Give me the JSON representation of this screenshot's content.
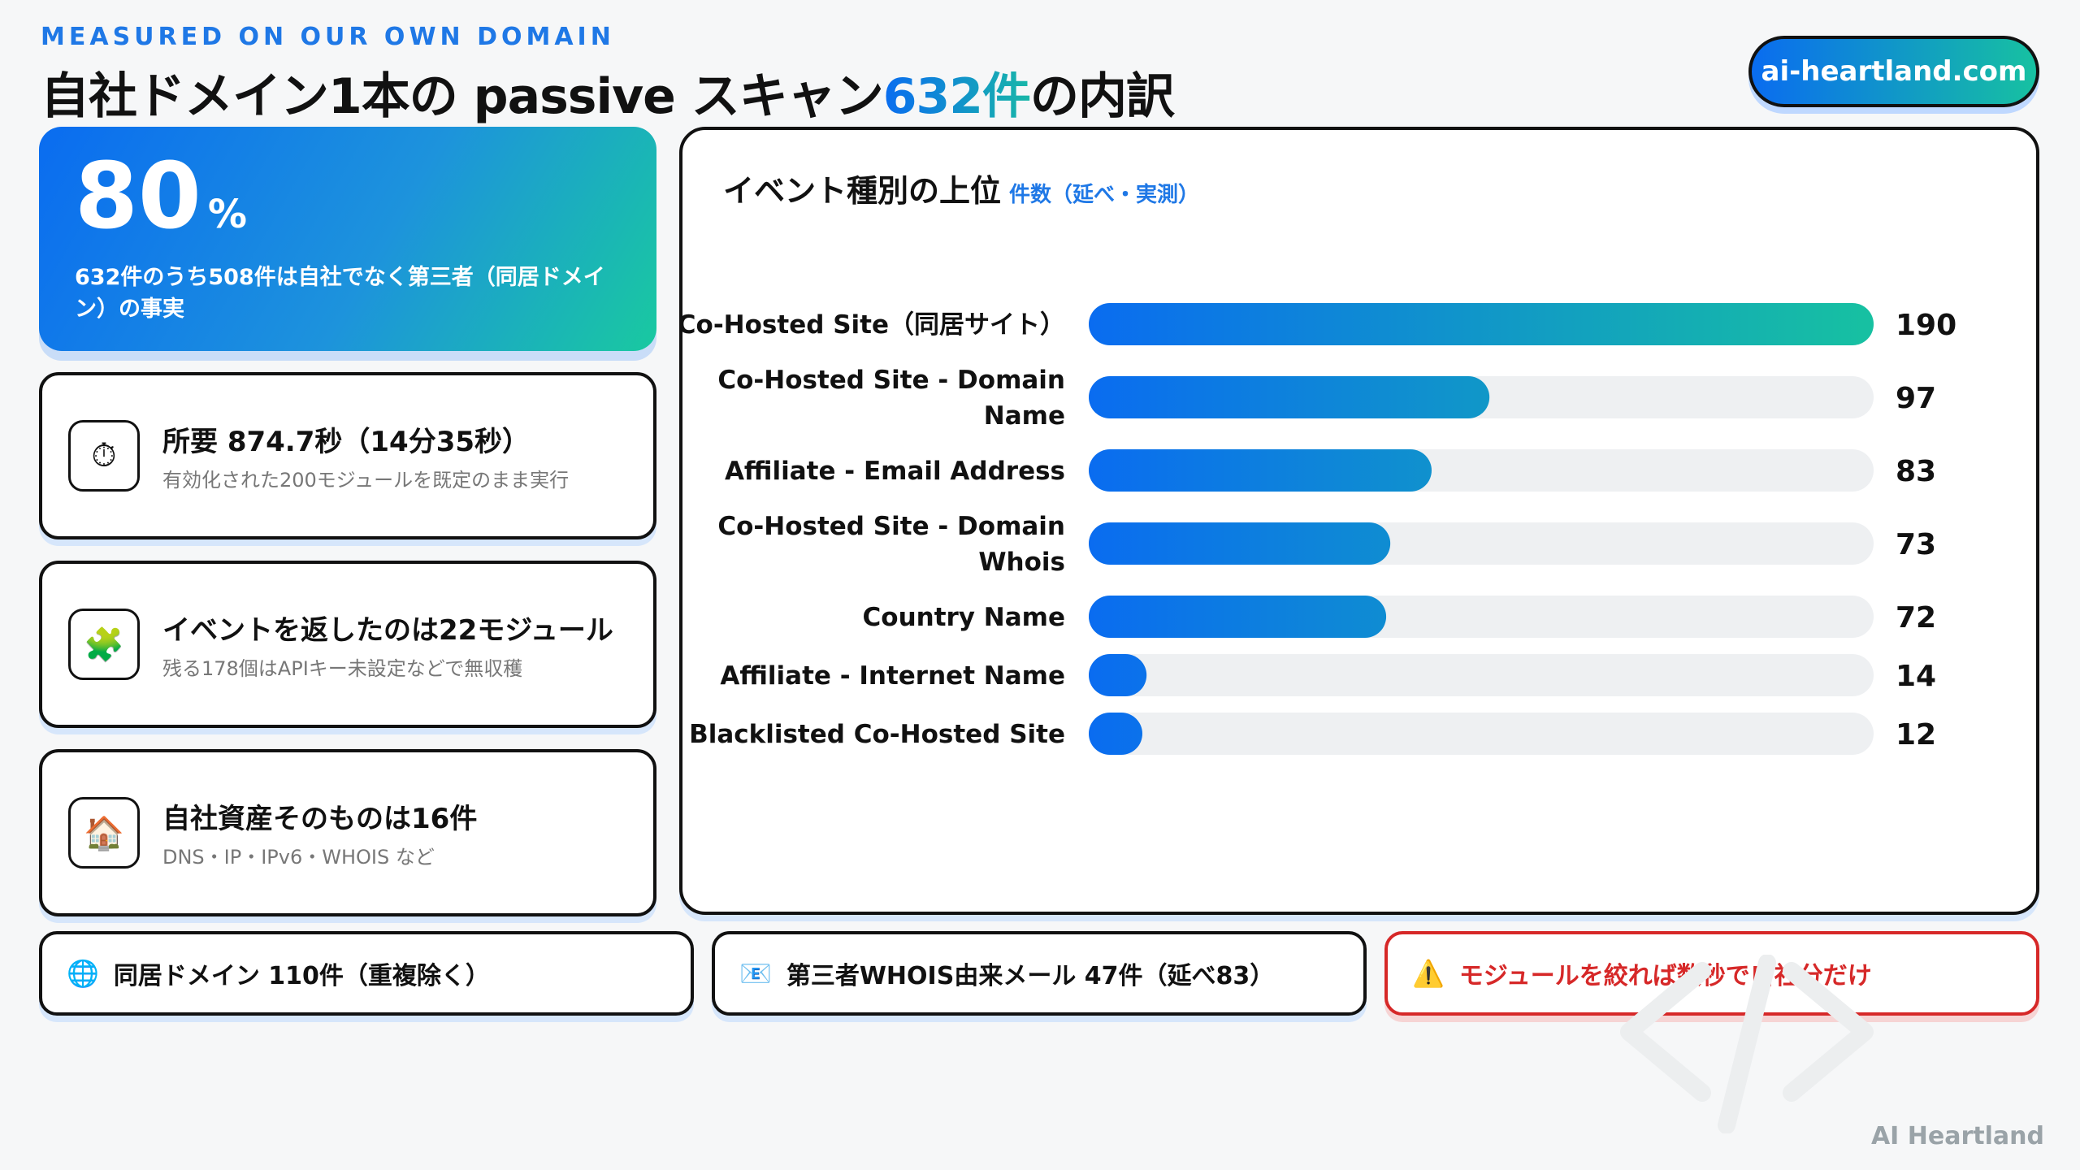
{
  "header": {
    "eyebrow": "MEASURED ON OUR OWN DOMAIN",
    "title_pre": "自社ドメイン1本の passive スキャン",
    "title_accent": "632件",
    "title_post": "の内訳",
    "domain": "ai-heartland.com"
  },
  "hero": {
    "value": "80",
    "unit": "%",
    "description": "632件のうち508件は自社でなく第三者（同居ドメイン）の事実"
  },
  "cards": [
    {
      "icon": "stopwatch-icon",
      "glyph": "⏱",
      "title": "所要 874.7秒（14分35秒）",
      "subtitle": "有効化された200モジュールを既定のまま実行"
    },
    {
      "icon": "puzzle-icon",
      "glyph": "🧩",
      "title": "イベントを返したのは22モジュール",
      "subtitle": "残る178個はAPIキー未設定などで無収穫"
    },
    {
      "icon": "house-icon",
      "glyph": "🏠",
      "title": "自社資産そのものは16件",
      "subtitle": "DNS・IP・IPv6・WHOIS など"
    }
  ],
  "chart_panel": {
    "title": "イベント種別の上位",
    "subtitle": "件数（延べ・実測）"
  },
  "chart_data": {
    "type": "bar",
    "orientation": "horizontal",
    "categories": [
      [
        "Co-Hosted Site（同居サイト）"
      ],
      [
        "Co-Hosted Site - Domain",
        "Name"
      ],
      [
        "Affiliate - Email Address"
      ],
      [
        "Co-Hosted Site - Domain",
        "Whois"
      ],
      [
        "Country Name"
      ],
      [
        "Affiliate - Internet Name"
      ],
      [
        "Blacklisted Co-Hosted Site"
      ]
    ],
    "values": [
      190,
      97,
      83,
      73,
      72,
      14,
      12
    ],
    "xlim": [
      0,
      190
    ],
    "grid": false,
    "colors": {
      "start": "#0a6cf0",
      "end": "#17c1a1",
      "track": "#eef0f2"
    }
  },
  "bottom_cards": [
    {
      "icon": "globe-icon",
      "glyph": "🌐",
      "text": "同居ドメイン 110件（重複除く）"
    },
    {
      "icon": "envelope-icon",
      "glyph": "📧",
      "text": "第三者WHOIS由来メール 47件（延べ83）"
    },
    {
      "icon": "warning-icon",
      "glyph": "⚠️",
      "text": "モジュールを絞れば数秒で自社分だけ"
    }
  ],
  "footer": {
    "brand": "AI Heartland"
  }
}
